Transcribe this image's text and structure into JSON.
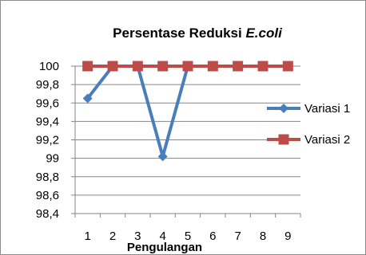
{
  "chart_data": {
    "type": "line",
    "title": "Persentase Reduksi ",
    "title_italic": "E.coli",
    "xlabel": "Pengulangan",
    "ylabel": "",
    "categories": [
      "1",
      "2",
      "3",
      "4",
      "5",
      "6",
      "7",
      "8",
      "9"
    ],
    "ylim": [
      98.4,
      100
    ],
    "yticks": [
      "100",
      "99,8",
      "99,6",
      "99,4",
      "99,2",
      "99",
      "98,8",
      "98,6",
      "98,4"
    ],
    "ytick_values": [
      100,
      99.8,
      99.6,
      99.4,
      99.2,
      99,
      98.8,
      98.6,
      98.4
    ],
    "grid": true,
    "legend_position": "right",
    "series": [
      {
        "name": "Variasi 1",
        "color": "#4a7ebb",
        "marker": "diamond",
        "values": [
          99.65,
          100,
          100,
          99.02,
          100,
          null,
          null,
          null,
          null
        ]
      },
      {
        "name": "Variasi 2",
        "color": "#be4b48",
        "marker": "square",
        "values": [
          100,
          100,
          100,
          100,
          100,
          100,
          100,
          100,
          100
        ]
      }
    ]
  }
}
